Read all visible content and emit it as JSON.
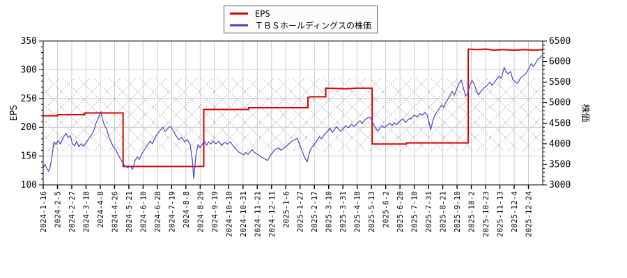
{
  "chart_data": {
    "type": "line",
    "title": "",
    "description": "EPS vs TBS Holdings stock price comparison chart, dual y-axes, step line for EPS and daily line for stock price, with cross-hatched valuation band",
    "legend_items": [
      {
        "label": "EPS",
        "color": "#dd0000"
      },
      {
        "label": "ＴＢＳホールディングスの株価",
        "color": "#5555cc"
      }
    ],
    "axes": {
      "x": {
        "tick_labels": [
          "2024-1-16",
          "2024-2-5",
          "2024-2-27",
          "2024-3-18",
          "2024-4-8",
          "2024-4-26",
          "2024-5-21",
          "2024-6-10",
          "2024-6-28",
          "2024-7-19",
          "2024-8-8",
          "2024-8-29",
          "2024-9-19",
          "2024-10-10",
          "2024-10-31",
          "2024-11-21",
          "2024-12-11",
          "2025-1-6",
          "2025-1-27",
          "2025-2-17",
          "2025-3-10",
          "2025-3-31",
          "2025-4-18",
          "2025-5-13",
          "2025-6-2",
          "2025-6-20",
          "2025-7-10",
          "2025-7-31",
          "2025-8-21",
          "2025-9-10",
          "2025-10-2",
          "2025-10-23",
          "2025-11-13",
          "2025-12-4",
          "2025-12-24"
        ],
        "range": [
          0,
          35
        ]
      },
      "y_left": {
        "label": "EPS",
        "min": 100,
        "max": 350,
        "major_step": 50,
        "minor_step": 10,
        "tick_labels": [
          "100",
          "150",
          "200",
          "250",
          "300",
          "350"
        ]
      },
      "y_right": {
        "label": "株価",
        "min": 3000,
        "max": 6500,
        "major_step": 500,
        "minor_step": 100,
        "tick_labels": [
          "3000",
          "3500",
          "4000",
          "4500",
          "5000",
          "5500",
          "6000",
          "6500"
        ]
      }
    },
    "band": {
      "name": "hatch-band",
      "pattern": "diagonal-crosshatch",
      "color": "#b8b8b8",
      "eps_range": [
        158,
        286
      ],
      "price_range": [
        3810,
        5600
      ]
    },
    "grid": {
      "color": "#cccccc",
      "vertical_at_every_x_tick": true,
      "horizontal_at_left_majors": true
    },
    "series": [
      {
        "name": "EPS",
        "axis": "left",
        "color": "#dd0000",
        "width": 2,
        "points": [
          [
            0,
            220
          ],
          [
            1.0,
            220
          ],
          [
            1.0,
            222
          ],
          [
            2.9,
            222
          ],
          [
            2.9,
            225
          ],
          [
            5.6,
            225
          ],
          [
            5.6,
            132
          ],
          [
            11.25,
            132
          ],
          [
            11.25,
            231
          ],
          [
            14.4,
            231
          ],
          [
            14.4,
            234
          ],
          [
            18.55,
            234
          ],
          [
            18.55,
            252
          ],
          [
            18.75,
            253
          ],
          [
            19.8,
            253
          ],
          [
            19.8,
            268
          ],
          [
            21.3,
            267
          ],
          [
            21.9,
            268
          ],
          [
            23.05,
            268
          ],
          [
            23.05,
            171
          ],
          [
            25.45,
            171
          ],
          [
            25.45,
            173
          ],
          [
            29.78,
            173
          ],
          [
            29.78,
            336
          ],
          [
            30.4,
            335
          ],
          [
            31.0,
            336
          ],
          [
            31.6,
            334
          ],
          [
            32.2,
            335
          ],
          [
            33.0,
            334
          ],
          [
            33.7,
            335
          ],
          [
            34.4,
            334
          ],
          [
            35.0,
            335
          ]
        ]
      },
      {
        "name": "ＴＢＳホールディングスの株価",
        "axis": "right",
        "color": "#4444cc",
        "width": 1.2,
        "points": [
          [
            0,
            3420
          ],
          [
            0.12,
            3500
          ],
          [
            0.25,
            3400
          ],
          [
            0.38,
            3330
          ],
          [
            0.5,
            3450
          ],
          [
            0.62,
            3700
          ],
          [
            0.75,
            4050
          ],
          [
            0.9,
            3980
          ],
          [
            1.05,
            4080
          ],
          [
            1.2,
            3990
          ],
          [
            1.4,
            4150
          ],
          [
            1.6,
            4250
          ],
          [
            1.75,
            4150
          ],
          [
            1.9,
            4200
          ],
          [
            2.05,
            4000
          ],
          [
            2.2,
            3950
          ],
          [
            2.35,
            4060
          ],
          [
            2.5,
            3930
          ],
          [
            2.65,
            4000
          ],
          [
            2.8,
            3940
          ],
          [
            3.0,
            4020
          ],
          [
            3.15,
            4100
          ],
          [
            3.3,
            4180
          ],
          [
            3.5,
            4280
          ],
          [
            3.7,
            4500
          ],
          [
            3.9,
            4650
          ],
          [
            4.05,
            4780
          ],
          [
            4.15,
            4600
          ],
          [
            4.3,
            4440
          ],
          [
            4.45,
            4350
          ],
          [
            4.6,
            4180
          ],
          [
            4.75,
            4050
          ],
          [
            4.9,
            3930
          ],
          [
            5.1,
            3850
          ],
          [
            5.3,
            3700
          ],
          [
            5.5,
            3580
          ],
          [
            5.7,
            3470
          ],
          [
            5.9,
            3420
          ],
          [
            6.1,
            3450
          ],
          [
            6.27,
            3380
          ],
          [
            6.45,
            3600
          ],
          [
            6.6,
            3680
          ],
          [
            6.75,
            3620
          ],
          [
            6.9,
            3760
          ],
          [
            7.1,
            3850
          ],
          [
            7.3,
            3960
          ],
          [
            7.5,
            4060
          ],
          [
            7.65,
            4000
          ],
          [
            7.8,
            4120
          ],
          [
            8.0,
            4240
          ],
          [
            8.2,
            4330
          ],
          [
            8.4,
            4400
          ],
          [
            8.55,
            4300
          ],
          [
            8.7,
            4360
          ],
          [
            8.85,
            4420
          ],
          [
            9.0,
            4380
          ],
          [
            9.15,
            4300
          ],
          [
            9.3,
            4200
          ],
          [
            9.5,
            4100
          ],
          [
            9.7,
            4160
          ],
          [
            9.9,
            4050
          ],
          [
            10.1,
            4100
          ],
          [
            10.3,
            3980
          ],
          [
            10.45,
            3600
          ],
          [
            10.55,
            3150
          ],
          [
            10.7,
            3720
          ],
          [
            10.85,
            3980
          ],
          [
            11.0,
            3900
          ],
          [
            11.15,
            3990
          ],
          [
            11.3,
            4060
          ],
          [
            11.45,
            3970
          ],
          [
            11.6,
            4050
          ],
          [
            11.75,
            3990
          ],
          [
            11.9,
            4070
          ],
          [
            12.1,
            4000
          ],
          [
            12.3,
            4060
          ],
          [
            12.5,
            3960
          ],
          [
            12.7,
            4040
          ],
          [
            12.9,
            3990
          ],
          [
            13.1,
            4050
          ],
          [
            13.3,
            3950
          ],
          [
            13.5,
            3870
          ],
          [
            13.7,
            3800
          ],
          [
            13.9,
            3760
          ],
          [
            14.05,
            3730
          ],
          [
            14.2,
            3790
          ],
          [
            14.35,
            3740
          ],
          [
            14.5,
            3800
          ],
          [
            14.65,
            3860
          ],
          [
            14.8,
            3790
          ],
          [
            15.0,
            3750
          ],
          [
            15.2,
            3700
          ],
          [
            15.4,
            3650
          ],
          [
            15.6,
            3620
          ],
          [
            15.72,
            3590
          ],
          [
            15.9,
            3700
          ],
          [
            16.1,
            3800
          ],
          [
            16.3,
            3870
          ],
          [
            16.5,
            3900
          ],
          [
            16.65,
            3840
          ],
          [
            16.8,
            3880
          ],
          [
            17.0,
            3930
          ],
          [
            17.2,
            3990
          ],
          [
            17.4,
            4060
          ],
          [
            17.6,
            4090
          ],
          [
            17.8,
            4130
          ],
          [
            17.95,
            4000
          ],
          [
            18.1,
            3860
          ],
          [
            18.3,
            3680
          ],
          [
            18.5,
            3560
          ],
          [
            18.65,
            3780
          ],
          [
            18.8,
            3900
          ],
          [
            19.0,
            3990
          ],
          [
            19.2,
            4090
          ],
          [
            19.35,
            4170
          ],
          [
            19.5,
            4120
          ],
          [
            19.7,
            4220
          ],
          [
            19.9,
            4300
          ],
          [
            20.1,
            4380
          ],
          [
            20.25,
            4280
          ],
          [
            20.4,
            4340
          ],
          [
            20.55,
            4420
          ],
          [
            20.7,
            4350
          ],
          [
            20.85,
            4300
          ],
          [
            21.0,
            4360
          ],
          [
            21.2,
            4440
          ],
          [
            21.4,
            4390
          ],
          [
            21.6,
            4470
          ],
          [
            21.8,
            4420
          ],
          [
            22.0,
            4500
          ],
          [
            22.2,
            4560
          ],
          [
            22.35,
            4490
          ],
          [
            22.5,
            4570
          ],
          [
            22.7,
            4620
          ],
          [
            22.85,
            4650
          ],
          [
            23.0,
            4600
          ],
          [
            23.15,
            4480
          ],
          [
            23.3,
            4380
          ],
          [
            23.45,
            4310
          ],
          [
            23.6,
            4380
          ],
          [
            23.75,
            4440
          ],
          [
            23.9,
            4390
          ],
          [
            24.1,
            4450
          ],
          [
            24.3,
            4500
          ],
          [
            24.45,
            4440
          ],
          [
            24.6,
            4510
          ],
          [
            24.8,
            4470
          ],
          [
            25.0,
            4550
          ],
          [
            25.2,
            4610
          ],
          [
            25.4,
            4520
          ],
          [
            25.6,
            4600
          ],
          [
            25.8,
            4620
          ],
          [
            26.0,
            4700
          ],
          [
            26.2,
            4650
          ],
          [
            26.4,
            4730
          ],
          [
            26.6,
            4700
          ],
          [
            26.75,
            4760
          ],
          [
            26.9,
            4700
          ],
          [
            27.05,
            4500
          ],
          [
            27.15,
            4340
          ],
          [
            27.3,
            4560
          ],
          [
            27.45,
            4700
          ],
          [
            27.6,
            4780
          ],
          [
            27.75,
            4850
          ],
          [
            27.9,
            4940
          ],
          [
            28.05,
            4890
          ],
          [
            28.2,
            5000
          ],
          [
            28.35,
            5080
          ],
          [
            28.5,
            5170
          ],
          [
            28.65,
            5280
          ],
          [
            28.8,
            5180
          ],
          [
            28.95,
            5310
          ],
          [
            29.1,
            5440
          ],
          [
            29.3,
            5550
          ],
          [
            29.45,
            5350
          ],
          [
            29.6,
            5160
          ],
          [
            29.75,
            5230
          ],
          [
            29.9,
            5420
          ],
          [
            30.05,
            5540
          ],
          [
            30.2,
            5450
          ],
          [
            30.35,
            5300
          ],
          [
            30.5,
            5190
          ],
          [
            30.7,
            5290
          ],
          [
            30.9,
            5360
          ],
          [
            31.1,
            5420
          ],
          [
            31.3,
            5500
          ],
          [
            31.45,
            5420
          ],
          [
            31.6,
            5480
          ],
          [
            31.75,
            5560
          ],
          [
            31.95,
            5640
          ],
          [
            32.1,
            5590
          ],
          [
            32.3,
            5860
          ],
          [
            32.45,
            5740
          ],
          [
            32.6,
            5700
          ],
          [
            32.75,
            5760
          ],
          [
            32.9,
            5560
          ],
          [
            33.1,
            5500
          ],
          [
            33.25,
            5470
          ],
          [
            33.45,
            5600
          ],
          [
            33.65,
            5660
          ],
          [
            33.85,
            5720
          ],
          [
            34.05,
            5840
          ],
          [
            34.2,
            5950
          ],
          [
            34.35,
            5880
          ],
          [
            34.5,
            5960
          ],
          [
            34.65,
            6060
          ],
          [
            34.82,
            6100
          ],
          [
            34.95,
            6150
          ]
        ]
      }
    ]
  }
}
